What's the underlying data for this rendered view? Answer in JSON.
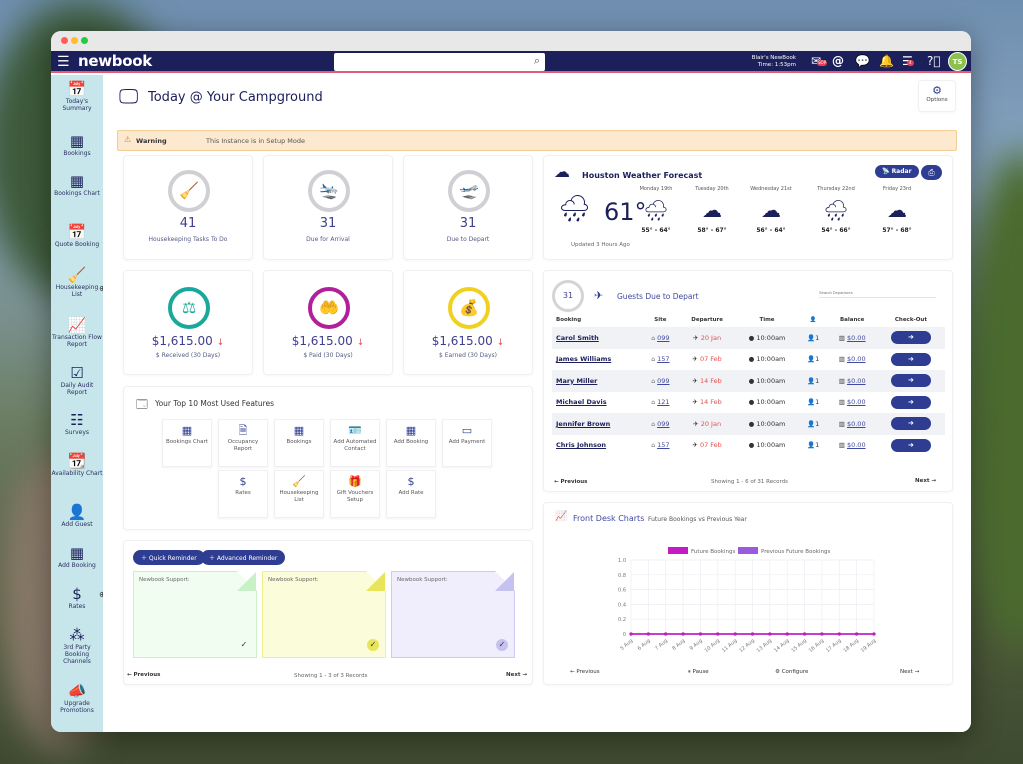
{
  "app": {
    "logo": "newbook",
    "search_placeholder": "",
    "account": "Blair's NewBook",
    "time": "Time: 1:53pm",
    "avatar_initials": "TS",
    "badges": {
      "messages": "SOP",
      "tasks": "4"
    }
  },
  "colors": {
    "nav": "#1b1f5a",
    "accent": "#2e3d91",
    "sidebar": "#c6e6ec",
    "warning_bg": "#fde9cf"
  },
  "sidebar": {
    "items": [
      {
        "label": "Today's Summary",
        "icon": "calendar-icon"
      },
      {
        "label": "Bookings",
        "icon": "calendar-grid-icon"
      },
      {
        "label": "Bookings Chart",
        "icon": "calendar-grid-icon"
      },
      {
        "label": "Quote Booking",
        "icon": "calendar-icon"
      },
      {
        "label": "Housekeeping List",
        "icon": "broom-icon"
      },
      {
        "label": "Transaction Flow Report",
        "icon": "line-chart-icon"
      },
      {
        "label": "Daily Audit Report",
        "icon": "checkbox-icon"
      },
      {
        "label": "Surveys",
        "icon": "checklist-icon"
      },
      {
        "label": "Availability Chart",
        "icon": "calendar-day-icon"
      },
      {
        "label": "Add Guest",
        "icon": "user-icon"
      },
      {
        "label": "Add Booking",
        "icon": "calendar-grid-icon"
      },
      {
        "label": "Rates",
        "icon": "dollar-icon"
      },
      {
        "label": "3rd Party Booking Channels",
        "icon": "network-icon"
      },
      {
        "label": "Upgrade Promotions",
        "icon": "megaphone-icon"
      }
    ]
  },
  "page": {
    "title": "Today @ Your Campground",
    "options_label": "Options"
  },
  "warning": {
    "label": "Warning",
    "message": "This Instance is in Setup Mode"
  },
  "stats": [
    {
      "value": "41",
      "label": "Housekeeping Tasks To Do",
      "icon": "broom-icon",
      "color": "#e8d414"
    },
    {
      "value": "31",
      "label": "Due for Arrival",
      "icon": "plane-arrival-icon",
      "color": "#8cc152"
    },
    {
      "value": "31",
      "label": "Due to Depart",
      "icon": "plane-departure-icon",
      "color": "#a23cb4"
    }
  ],
  "money": [
    {
      "value": "$1,615.00",
      "label": "$ Received (30 Days)",
      "icon": "scales-icon",
      "color": "#1aa89a",
      "trend": "down"
    },
    {
      "value": "$1,615.00",
      "label": "$ Paid (30 Days)",
      "icon": "hands-dollar-icon",
      "color": "#b0209a",
      "trend": "down"
    },
    {
      "value": "$1,615.00",
      "label": "$ Earned (30 Days)",
      "icon": "money-bag-icon",
      "color": "#f0d020",
      "trend": "down"
    }
  ],
  "features": {
    "title": "Your Top 10 Most Used Features",
    "items": [
      {
        "label": "Bookings Chart",
        "icon": "calendar-grid-icon"
      },
      {
        "label": "Occupancy Report",
        "icon": "report-icon"
      },
      {
        "label": "Bookings",
        "icon": "calendar-grid-icon"
      },
      {
        "label": "Add Automated Contact",
        "icon": "contact-card-icon"
      },
      {
        "label": "Add Booking",
        "icon": "calendar-grid-icon"
      },
      {
        "label": "Add Payment",
        "icon": "payment-icon"
      },
      {
        "label": "Rates",
        "icon": "dollar-icon"
      },
      {
        "label": "Housekeeping List",
        "icon": "broom-icon"
      },
      {
        "label": "Gift Vouchers Setup",
        "icon": "gift-icon"
      },
      {
        "label": "Add Rate",
        "icon": "dollar-icon"
      }
    ]
  },
  "reminders": {
    "quick_label": "Quick Reminder",
    "advanced_label": "Advanced Reminder",
    "notes": [
      {
        "text": "Newbook Support:",
        "color": "green"
      },
      {
        "text": "Newbook Support:",
        "color": "yellow"
      },
      {
        "text": "Newbook Support:",
        "color": "purple"
      }
    ],
    "previous": "Previous",
    "next": "Next",
    "showing": "Showing 1 - 3 of 3 Records"
  },
  "weather": {
    "title": "Houston Weather Forecast",
    "radar_label": "Radar",
    "current_temp": "61°",
    "updated": "Updated 3 Hours Ago",
    "current_icon": "rain-cloud-icon",
    "days": [
      {
        "day": "Monday 19th",
        "range": "55° - 64°",
        "icon": "rain-cloud-icon"
      },
      {
        "day": "Tuesday 20th",
        "range": "58° - 67°",
        "icon": "clouds-icon"
      },
      {
        "day": "Wednesday 21st",
        "range": "56° - 64°",
        "icon": "clouds-icon"
      },
      {
        "day": "Thursday 22nd",
        "range": "54° - 66°",
        "icon": "rain-cloud-icon"
      },
      {
        "day": "Friday 23rd",
        "range": "57° - 68°",
        "icon": "clouds-icon"
      }
    ]
  },
  "departures": {
    "count": "31",
    "title": "Guests Due to Depart",
    "search_placeholder": "Search Departures",
    "columns": [
      "Booking",
      "Site",
      "Departure",
      "Time",
      "",
      "Balance",
      "Check-Out"
    ],
    "rows": [
      {
        "name": "Carol Smith",
        "site": "099",
        "departure": "20 Jan",
        "time": "10:00am",
        "guests": "1",
        "balance": "$0.00"
      },
      {
        "name": "James Williams",
        "site": "157",
        "departure": "07 Feb",
        "time": "10:00am",
        "guests": "1",
        "balance": "$0.00"
      },
      {
        "name": "Mary Miller",
        "site": "099",
        "departure": "14 Feb",
        "time": "10:00am",
        "guests": "1",
        "balance": "$0.00"
      },
      {
        "name": "Michael Davis",
        "site": "121",
        "departure": "14 Feb",
        "time": "10:00am",
        "guests": "1",
        "balance": "$0.00"
      },
      {
        "name": "Jennifer Brown",
        "site": "099",
        "departure": "20 Jan",
        "time": "10:00am",
        "guests": "1",
        "balance": "$0.00"
      },
      {
        "name": "Chris Johnson",
        "site": "157",
        "departure": "07 Feb",
        "time": "10:00am",
        "guests": "1",
        "balance": "$0.00"
      }
    ],
    "previous": "Previous",
    "next": "Next",
    "showing": "Showing 1 - 6 of 31 Records"
  },
  "charts_panel": {
    "title": "Front Desk Charts",
    "subtitle": "Future Bookings vs Previous Year",
    "previous": "Previous",
    "pause": "Pause",
    "configure": "Configure",
    "next": "Next"
  },
  "chart_data": {
    "type": "line",
    "x": [
      "5 Aug",
      "6 Aug",
      "7 Aug",
      "8 Aug",
      "9 Aug",
      "10 Aug",
      "11 Aug",
      "12 Aug",
      "13 Aug",
      "14 Aug",
      "15 Aug",
      "16 Aug",
      "17 Aug",
      "18 Aug",
      "19 Aug"
    ],
    "series": [
      {
        "name": "Future Bookings",
        "color": "#c41bc4",
        "values": [
          0,
          0,
          0,
          0,
          0,
          0,
          0,
          0,
          0,
          0,
          0,
          0,
          0,
          0,
          0
        ]
      },
      {
        "name": "Previous Future Bookings",
        "color": "#9b59e0",
        "values": [
          0,
          0,
          0,
          0,
          0,
          0,
          0,
          0,
          0,
          0,
          0,
          0,
          0,
          0,
          0
        ]
      }
    ],
    "ylim": [
      0,
      1
    ],
    "yticks": [
      "0",
      "0.2",
      "0.4",
      "0.6",
      "0.8",
      "1.0"
    ],
    "grid": true,
    "legend": "top"
  }
}
